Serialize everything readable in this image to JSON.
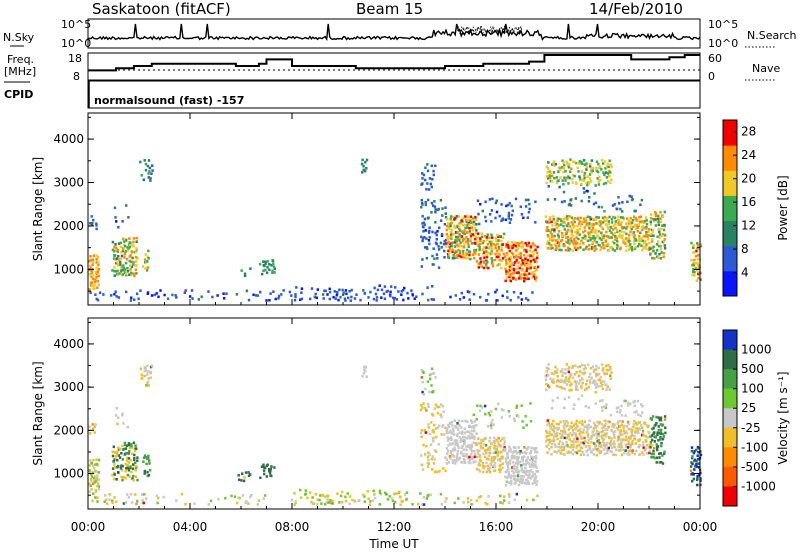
{
  "header": {
    "radar": "Saskatoon (fitACF)",
    "beam": "Beam 15",
    "date": "14/Feb/2010"
  },
  "top_panel": {
    "left_label": "N.Sky",
    "right_label": "N.Search",
    "left_ticks": [
      "10^5",
      "10^0"
    ],
    "right_ticks": [
      "10^5",
      "10^0"
    ]
  },
  "freq_panel": {
    "left_label_1": "Freq.",
    "left_label_2": "[MHz]",
    "right_label": "Nave",
    "left_ticks": [
      "18",
      "8"
    ],
    "right_ticks": [
      "60",
      "0"
    ]
  },
  "cpid": {
    "label": "CPID",
    "value": "normalsound (fast) -157"
  },
  "chart_data": [
    {
      "type": "heatmap",
      "title": "",
      "xlabel": "Time UT",
      "ylabel": "Slant Range [km]",
      "x_ticks": [
        "00:00",
        "04:00",
        "08:00",
        "12:00",
        "16:00",
        "20:00",
        "00:00"
      ],
      "y_ticks": [
        "1000",
        "2000",
        "3000",
        "4000"
      ],
      "ylim": [
        180,
        4600
      ],
      "colorbar": {
        "label": "Power [dB]",
        "ticks": [
          "4",
          "8",
          "12",
          "16",
          "20",
          "24",
          "28"
        ],
        "range": [
          0,
          30
        ],
        "colors": [
          "#0a14ff",
          "#2d5ad2",
          "#288264",
          "#3caa50",
          "#f0c828",
          "#ff8c00",
          "#f00000"
        ]
      }
    },
    {
      "type": "heatmap",
      "title": "",
      "xlabel": "Time UT",
      "ylabel": "Slant Range [km]",
      "x_ticks": [
        "00:00",
        "04:00",
        "08:00",
        "12:00",
        "16:00",
        "20:00",
        "00:00"
      ],
      "y_ticks": [
        "1000",
        "2000",
        "3000",
        "4000"
      ],
      "ylim": [
        180,
        4600
      ],
      "colorbar": {
        "label": "Velocity [m s⁻¹]",
        "ticks": [
          "1000",
          "500",
          "100",
          "25",
          "-25",
          "-100",
          "-500",
          "-1000"
        ],
        "colors": [
          "#1432c8",
          "#2d6e46",
          "#46a046",
          "#6ec832",
          "#c8c8c8",
          "#f0be28",
          "#ff8c00",
          "#ff5a00",
          "#f00000"
        ]
      }
    }
  ]
}
